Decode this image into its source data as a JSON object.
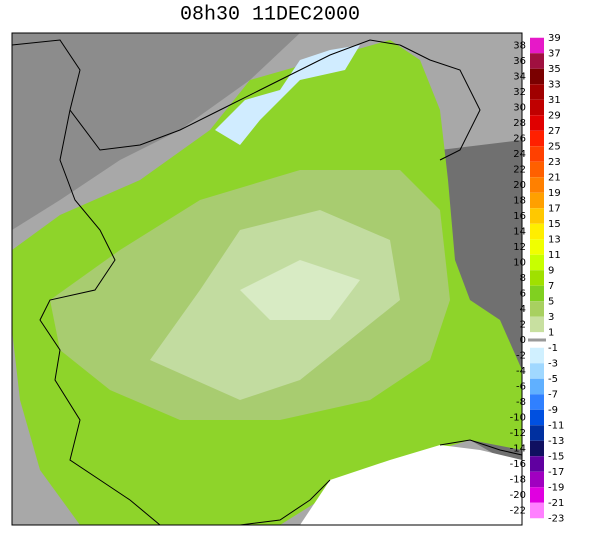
{
  "title": "08h30 11DEC2000",
  "colorbar": {
    "left_labels": [
      38,
      36,
      34,
      32,
      30,
      28,
      26,
      24,
      22,
      20,
      18,
      16,
      14,
      12,
      10,
      8,
      6,
      4,
      2,
      0,
      -2,
      -4,
      -6,
      -8,
      -10,
      -12,
      -14,
      -16,
      -18,
      -20,
      -22
    ],
    "right_labels": [
      39,
      37,
      35,
      33,
      31,
      29,
      27,
      25,
      23,
      21,
      19,
      17,
      15,
      13,
      11,
      9,
      7,
      5,
      3,
      1,
      -1,
      -3,
      -5,
      -7,
      -9,
      -11,
      -13,
      -15,
      -17,
      -19,
      -21,
      -23
    ],
    "colors": [
      "#e619c8",
      "#a01040",
      "#7a0000",
      "#a00000",
      "#c00000",
      "#e00000",
      "#ff2000",
      "#ff4000",
      "#ff6000",
      "#ff8000",
      "#ffa000",
      "#ffc800",
      "#ffee00",
      "#f0ff00",
      "#c8ff00",
      "#a0e000",
      "#80d020",
      "#a8d060",
      "#c8e0a0",
      "#ffffff",
      "#d0f0ff",
      "#a0d8ff",
      "#60b0ff",
      "#3080ff",
      "#0050e0",
      "#0030a0",
      "#101060",
      "#6000a0",
      "#a000c0",
      "#e000e0",
      "#ff80ff"
    ]
  }
}
